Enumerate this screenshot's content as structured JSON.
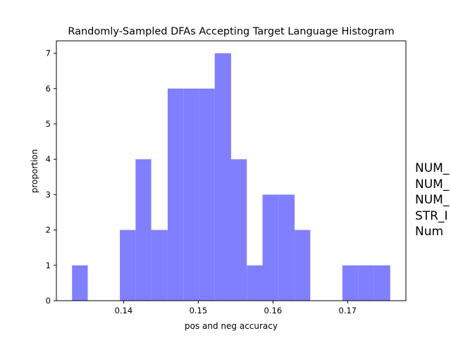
{
  "chart_data": {
    "type": "bar",
    "title": "Randomly-Sampled DFAs Accepting Target Language Histogram",
    "xlabel": "pos and neg accuracy",
    "ylabel": "proportion",
    "xlim": [
      0.131,
      0.1778
    ],
    "ylim": [
      0,
      7.35
    ],
    "xticks": [
      "0.14",
      "0.15",
      "0.16",
      "0.17"
    ],
    "xtick_values": [
      0.14,
      0.15,
      0.16,
      0.17
    ],
    "yticks": [
      "0",
      "1",
      "2",
      "3",
      "4",
      "5",
      "6",
      "7"
    ],
    "ytick_values": [
      0,
      1,
      2,
      3,
      4,
      5,
      6,
      7
    ],
    "grid": false,
    "bar_color": "#8080ff",
    "bins": [
      {
        "x0": 0.1331,
        "x1": 0.1352,
        "value": 1
      },
      {
        "x0": 0.1352,
        "x1": 0.1373,
        "value": 0
      },
      {
        "x0": 0.1373,
        "x1": 0.1395,
        "value": 0
      },
      {
        "x0": 0.1395,
        "x1": 0.1416,
        "value": 2
      },
      {
        "x0": 0.1416,
        "x1": 0.1437,
        "value": 4
      },
      {
        "x0": 0.1437,
        "x1": 0.1459,
        "value": 2
      },
      {
        "x0": 0.1459,
        "x1": 0.148,
        "value": 6
      },
      {
        "x0": 0.148,
        "x1": 0.1501,
        "value": 6
      },
      {
        "x0": 0.1501,
        "x1": 0.1522,
        "value": 6
      },
      {
        "x0": 0.1522,
        "x1": 0.1544,
        "value": 7
      },
      {
        "x0": 0.1544,
        "x1": 0.1565,
        "value": 4
      },
      {
        "x0": 0.1565,
        "x1": 0.1586,
        "value": 1
      },
      {
        "x0": 0.1586,
        "x1": 0.1608,
        "value": 3
      },
      {
        "x0": 0.1608,
        "x1": 0.1629,
        "value": 3
      },
      {
        "x0": 0.1629,
        "x1": 0.165,
        "value": 2
      },
      {
        "x0": 0.165,
        "x1": 0.1672,
        "value": 0
      },
      {
        "x0": 0.1672,
        "x1": 0.1693,
        "value": 0
      },
      {
        "x0": 0.1693,
        "x1": 0.1714,
        "value": 1
      },
      {
        "x0": 0.1714,
        "x1": 0.1735,
        "value": 1
      },
      {
        "x0": 0.1735,
        "x1": 0.1757,
        "value": 1
      }
    ]
  },
  "side_text": [
    "NUM_",
    "NUM_",
    "NUM_",
    "STR_I",
    "Num"
  ]
}
